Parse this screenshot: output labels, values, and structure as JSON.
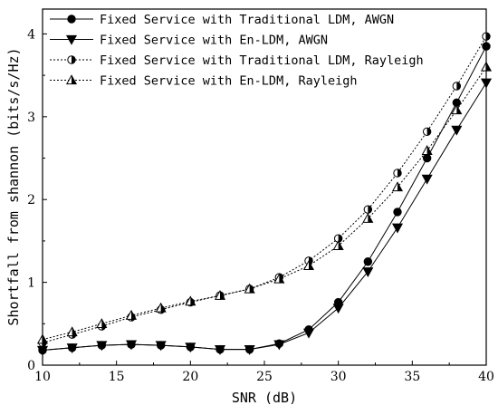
{
  "chart_data": {
    "type": "line",
    "title": "",
    "xlabel": "SNR (dB)",
    "ylabel": "Shortfall from shannon (bits/s/Hz)",
    "xlim": [
      10,
      40
    ],
    "ylim": [
      0,
      4.3
    ],
    "xticks": [
      10,
      15,
      20,
      25,
      30,
      35,
      40
    ],
    "yticks": [
      0,
      1,
      2,
      3,
      4
    ],
    "grid": false,
    "legend_position": "top-left",
    "x": [
      10,
      12,
      14,
      16,
      18,
      20,
      22,
      24,
      26,
      28,
      30,
      32,
      34,
      36,
      38,
      40
    ],
    "series": [
      {
        "name": "Fixed Service with Traditional LDM, AWGN",
        "marker": "filled-circle",
        "line": "solid",
        "values": [
          0.18,
          0.21,
          0.24,
          0.25,
          0.24,
          0.22,
          0.19,
          0.19,
          0.26,
          0.43,
          0.76,
          1.25,
          1.85,
          2.5,
          3.17,
          3.85
        ]
      },
      {
        "name": "Fixed Service with En-LDM, AWGN",
        "marker": "filled-triangle-down",
        "line": "solid",
        "values": [
          0.18,
          0.21,
          0.24,
          0.25,
          0.24,
          0.22,
          0.19,
          0.19,
          0.25,
          0.39,
          0.69,
          1.13,
          1.66,
          2.25,
          2.84,
          3.41
        ]
      },
      {
        "name": "Fixed Service with Traditional LDM, Rayleigh",
        "marker": "half-circle",
        "line": "dotted",
        "values": [
          0.27,
          0.37,
          0.47,
          0.58,
          0.67,
          0.76,
          0.84,
          0.92,
          1.06,
          1.26,
          1.53,
          1.88,
          2.32,
          2.82,
          3.37,
          3.97
        ]
      },
      {
        "name": "Fixed Service with En-LDM, Rayleigh",
        "marker": "half-triangle-up",
        "line": "dotted",
        "values": [
          0.31,
          0.4,
          0.5,
          0.6,
          0.69,
          0.77,
          0.84,
          0.92,
          1.04,
          1.2,
          1.44,
          1.77,
          2.15,
          2.59,
          3.08,
          3.6
        ]
      }
    ]
  }
}
